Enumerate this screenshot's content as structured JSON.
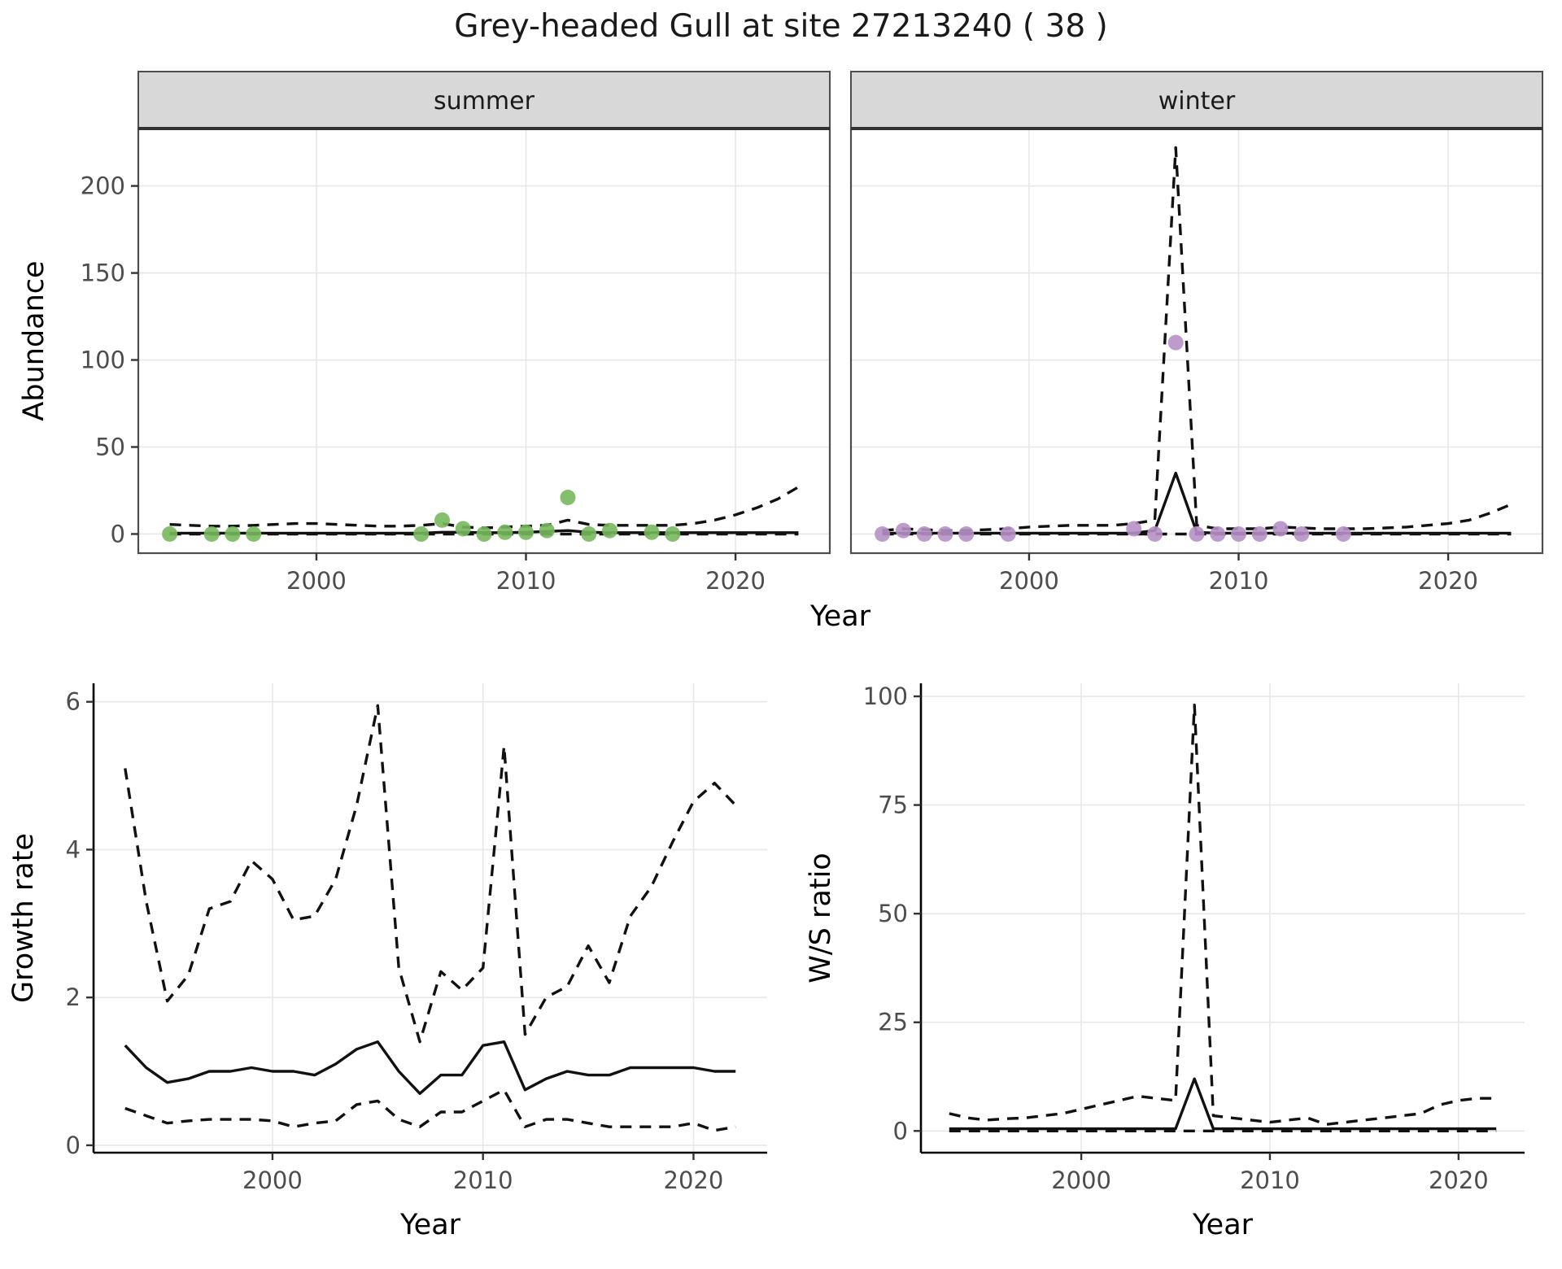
{
  "title": "Grey-headed Gull at site 27213240 ( 38 )",
  "style": {
    "point_summer": "#76b85c",
    "point_winter": "#b691c6",
    "line_color": "#111111",
    "strip_fill": "#d8d8d8",
    "strip_border": "#4d4d4d",
    "panel_border": "#4d4d4d",
    "grid_color": "#e7e7e7",
    "tick_text": "#4d4d4d",
    "axis_line": "#000000"
  },
  "chart_data": [
    {
      "id": "abundance-summer",
      "type": "line",
      "title": "summer",
      "xlabel": "Year",
      "ylabel": "Abundance",
      "xlim": [
        1991.5,
        2024.5
      ],
      "ylim": [
        -11,
        233
      ],
      "xticks": [
        2000,
        2010,
        2020
      ],
      "yticks": [
        0,
        50,
        100,
        150,
        200
      ],
      "x": [
        1993,
        1994,
        1995,
        1996,
        1997,
        1998,
        1999,
        2000,
        2001,
        2002,
        2003,
        2004,
        2005,
        2006,
        2007,
        2008,
        2009,
        2010,
        2011,
        2012,
        2013,
        2014,
        2015,
        2016,
        2017,
        2018,
        2019,
        2020,
        2021,
        2022,
        2023
      ],
      "series": [
        {
          "name": "fit",
          "style": "solid",
          "y": [
            0.5,
            0.5,
            0.5,
            0.5,
            0.5,
            0.5,
            0.5,
            0.5,
            0.5,
            0.5,
            0.5,
            0.5,
            0.5,
            1.0,
            1.0,
            0.8,
            0.8,
            1.0,
            1.5,
            2.0,
            1.0,
            0.8,
            0.8,
            0.8,
            0.8,
            0.8,
            0.8,
            0.8,
            0.8,
            0.8,
            0.8
          ]
        },
        {
          "name": "upper_ci",
          "style": "dashed",
          "y": [
            5.5,
            5.0,
            4.5,
            4.5,
            5.0,
            5.5,
            6.0,
            6.0,
            5.5,
            5.0,
            4.5,
            4.5,
            5.0,
            6.0,
            4.0,
            3.5,
            4.0,
            4.5,
            5.0,
            8.0,
            5.5,
            5.0,
            5.0,
            5.0,
            5.0,
            6.0,
            8.0,
            11,
            15,
            20,
            27
          ]
        },
        {
          "name": "lower_ci",
          "style": "dashed",
          "y": [
            0,
            0,
            0,
            0,
            0,
            0,
            0,
            0,
            0,
            0,
            0,
            0,
            0,
            0,
            0,
            0,
            0,
            0,
            0,
            0,
            0,
            0,
            0,
            0,
            0,
            0,
            0,
            0,
            0,
            0,
            0
          ]
        }
      ],
      "points": {
        "name": "summer-observations",
        "color": "#76b85c",
        "x": [
          1993,
          1995,
          1996,
          1997,
          2005,
          2006,
          2007,
          2008,
          2009,
          2010,
          2011,
          2012,
          2013,
          2014,
          2016,
          2017
        ],
        "y": [
          0,
          0,
          0,
          0,
          0,
          8,
          3,
          0,
          1,
          1,
          2,
          21,
          0,
          2,
          1,
          0
        ]
      }
    },
    {
      "id": "abundance-winter",
      "type": "line",
      "title": "winter",
      "xlabel": "Year",
      "ylabel": "Abundance",
      "xlim": [
        1991.5,
        2024.5
      ],
      "ylim": [
        -11,
        233
      ],
      "xticks": [
        2000,
        2010,
        2020
      ],
      "yticks": [
        0,
        50,
        100,
        150,
        200
      ],
      "x": [
        1993,
        1994,
        1995,
        1996,
        1997,
        1998,
        1999,
        2000,
        2001,
        2002,
        2003,
        2004,
        2005,
        2006,
        2007,
        2008,
        2009,
        2010,
        2011,
        2012,
        2013,
        2014,
        2015,
        2016,
        2017,
        2018,
        2019,
        2020,
        2021,
        2022,
        2023
      ],
      "series": [
        {
          "name": "fit",
          "style": "solid",
          "y": [
            0.5,
            0.5,
            0.5,
            0.5,
            0.5,
            0.5,
            0.5,
            0.5,
            0.5,
            0.5,
            0.5,
            0.5,
            0.5,
            2,
            35,
            1,
            0.5,
            0.5,
            0.5,
            0.5,
            0.5,
            0.5,
            0.5,
            0.5,
            0.5,
            0.5,
            0.5,
            0.5,
            0.5,
            0.5,
            0.5
          ]
        },
        {
          "name": "upper_ci",
          "style": "dashed",
          "y": [
            2,
            3,
            2.5,
            2,
            2,
            2.5,
            3,
            4,
            4.5,
            5,
            5,
            5,
            6,
            8,
            222,
            5,
            3,
            3,
            3,
            4,
            3.5,
            3,
            3,
            3,
            3.5,
            4,
            5,
            6,
            8,
            12,
            17
          ]
        },
        {
          "name": "lower_ci",
          "style": "dashed",
          "y": [
            0,
            0,
            0,
            0,
            0,
            0,
            0,
            0,
            0,
            0,
            0,
            0,
            0,
            0,
            0,
            0,
            0,
            0,
            0,
            0,
            0,
            0,
            0,
            0,
            0,
            0,
            0,
            0,
            0,
            0,
            0
          ]
        }
      ],
      "points": {
        "name": "winter-observations",
        "color": "#b691c6",
        "x": [
          1993,
          1994,
          1995,
          1996,
          1997,
          1999,
          2005,
          2006,
          2007,
          2008,
          2009,
          2010,
          2011,
          2012,
          2013,
          2015
        ],
        "y": [
          0,
          2,
          0,
          0,
          0,
          0,
          3,
          0,
          110,
          0,
          0,
          0,
          0,
          3,
          0,
          0
        ]
      }
    },
    {
      "id": "growth-rate",
      "type": "line",
      "title": "",
      "xlabel": "Year",
      "ylabel": "Growth rate",
      "xlim": [
        1991.5,
        2023.5
      ],
      "ylim": [
        -0.1,
        6.25
      ],
      "xticks": [
        2000,
        2010,
        2020
      ],
      "yticks": [
        0,
        2,
        4,
        6
      ],
      "x": [
        1993,
        1994,
        1995,
        1996,
        1997,
        1998,
        1999,
        2000,
        2001,
        2002,
        2003,
        2004,
        2005,
        2006,
        2007,
        2008,
        2009,
        2010,
        2011,
        2012,
        2013,
        2014,
        2015,
        2016,
        2017,
        2018,
        2019,
        2020,
        2021,
        2022
      ],
      "series": [
        {
          "name": "fit",
          "style": "solid",
          "y": [
            1.35,
            1.05,
            0.85,
            0.9,
            1.0,
            1.0,
            1.05,
            1.0,
            1.0,
            0.95,
            1.1,
            1.3,
            1.4,
            1.0,
            0.7,
            0.95,
            0.95,
            1.35,
            1.4,
            0.75,
            0.9,
            1.0,
            0.95,
            0.95,
            1.05,
            1.05,
            1.05,
            1.05,
            1.0,
            1.0
          ]
        },
        {
          "name": "upper_ci",
          "style": "dashed",
          "y": [
            5.1,
            3.3,
            1.95,
            2.3,
            3.2,
            3.3,
            3.85,
            3.6,
            3.05,
            3.1,
            3.6,
            4.6,
            5.95,
            2.4,
            1.4,
            2.35,
            2.1,
            2.4,
            5.4,
            1.5,
            2.0,
            2.15,
            2.7,
            2.2,
            3.1,
            3.5,
            4.1,
            4.65,
            4.9,
            4.6
          ]
        },
        {
          "name": "lower_ci",
          "style": "dashed",
          "y": [
            0.5,
            0.4,
            0.3,
            0.33,
            0.35,
            0.35,
            0.35,
            0.33,
            0.25,
            0.3,
            0.33,
            0.55,
            0.6,
            0.35,
            0.25,
            0.45,
            0.45,
            0.6,
            0.75,
            0.25,
            0.35,
            0.35,
            0.3,
            0.25,
            0.25,
            0.25,
            0.25,
            0.3,
            0.2,
            0.25
          ]
        }
      ]
    },
    {
      "id": "ws-ratio",
      "type": "line",
      "title": "",
      "xlabel": "Year",
      "ylabel": "W/S ratio",
      "xlim": [
        1991.5,
        2023.5
      ],
      "ylim": [
        -5,
        103
      ],
      "xticks": [
        2000,
        2010,
        2020
      ],
      "yticks": [
        0,
        25,
        50,
        75,
        100
      ],
      "x": [
        1993,
        1994,
        1995,
        1996,
        1997,
        1998,
        1999,
        2000,
        2001,
        2002,
        2003,
        2004,
        2005,
        2006,
        2007,
        2008,
        2009,
        2010,
        2011,
        2012,
        2013,
        2014,
        2015,
        2016,
        2017,
        2018,
        2019,
        2020,
        2021,
        2022
      ],
      "series": [
        {
          "name": "fit",
          "style": "solid",
          "y": [
            0.5,
            0.5,
            0.5,
            0.5,
            0.5,
            0.5,
            0.5,
            0.5,
            0.5,
            0.5,
            0.5,
            0.5,
            0.5,
            12,
            0.5,
            0.5,
            0.5,
            0.5,
            0.5,
            0.5,
            0.5,
            0.5,
            0.5,
            0.5,
            0.5,
            0.5,
            0.5,
            0.5,
            0.5,
            0.5
          ]
        },
        {
          "name": "upper_ci",
          "style": "dashed",
          "y": [
            4,
            3,
            2.5,
            2.8,
            3,
            3.5,
            4,
            5,
            6,
            7,
            8,
            7.5,
            7,
            98,
            3.5,
            3,
            2.5,
            2,
            2.5,
            3,
            1.5,
            2,
            2.5,
            3,
            3.5,
            4,
            6,
            7,
            7.5,
            7.5
          ]
        },
        {
          "name": "lower_ci",
          "style": "dashed",
          "y": [
            0,
            0,
            0,
            0,
            0,
            0,
            0,
            0,
            0,
            0,
            0,
            0,
            0,
            0,
            0,
            0,
            0,
            0,
            0,
            0,
            0,
            0,
            0,
            0,
            0,
            0,
            0,
            0,
            0,
            0
          ]
        }
      ]
    }
  ]
}
